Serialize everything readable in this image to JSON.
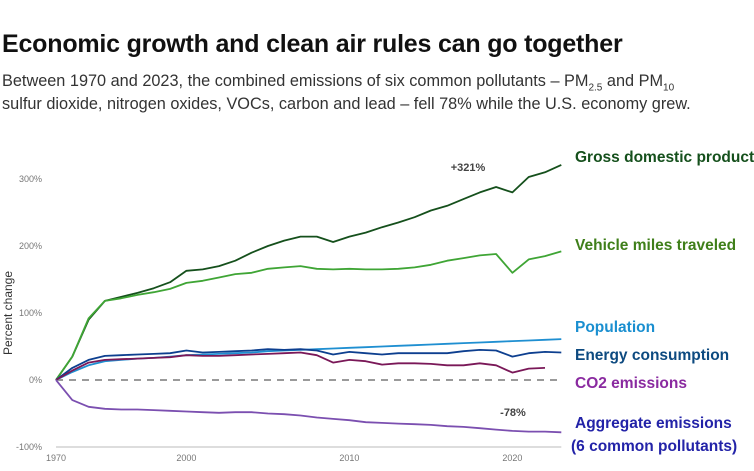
{
  "title": "Economic growth and clean air rules can go together",
  "subtitle": {
    "line1_a": "Between 1970 and 2023, the combined emissions of six common pollutants – PM",
    "pm25_sub": "2.5",
    "line1_b": " and PM",
    "pm10_sub": "10",
    "line2": "sulfur dioxide, nitrogen oxides, VOCs, carbon and lead – fell 78% while the U.S. economy grew."
  },
  "chart_data": {
    "type": "line",
    "ylabel": "Percent change",
    "xlabel": "",
    "ylim": [
      -100,
      300
    ],
    "y_ticks": [
      "300%",
      "200%",
      "100%",
      "0%",
      "-100%"
    ],
    "y_tick_values": [
      300,
      200,
      100,
      0,
      -100
    ],
    "x_tick_labels": [
      "1970",
      "2000",
      "2010",
      "2020"
    ],
    "categories": [
      "1970",
      "1980",
      "1990",
      "1995",
      "1996",
      "1997",
      "1998",
      "1999",
      "2000",
      "2001",
      "2002",
      "2003",
      "2004",
      "2005",
      "2006",
      "2007",
      "2008",
      "2009",
      "2010",
      "2011",
      "2012",
      "2013",
      "2014",
      "2015",
      "2016",
      "2017",
      "2018",
      "2019",
      "2020",
      "2021",
      "2022",
      "2023"
    ],
    "baseline": {
      "value": 0,
      "style": "dashed",
      "color": "#9a9a9a"
    },
    "series": [
      {
        "name": "Gross domestic product",
        "color": "#15501c",
        "label_color": "#15501c",
        "values": [
          0,
          35,
          90,
          118,
          124,
          130,
          137,
          146,
          163,
          165,
          170,
          178,
          190,
          200,
          208,
          214,
          214,
          206,
          214,
          220,
          228,
          235,
          243,
          253,
          260,
          270,
          280,
          288,
          280,
          303,
          310,
          321
        ]
      },
      {
        "name": "Vehicle miles traveled",
        "color": "#3fa535",
        "label_color": "#3f7f1a",
        "values": [
          0,
          35,
          92,
          118,
          122,
          127,
          131,
          136,
          145,
          148,
          153,
          158,
          160,
          166,
          168,
          170,
          166,
          165,
          166,
          165,
          165,
          166,
          168,
          172,
          178,
          182,
          186,
          188,
          160,
          180,
          185,
          192
        ]
      },
      {
        "name": "Population",
        "color": "#1f8fd1",
        "label_color": "#1a8fd0",
        "values": [
          0,
          12,
          22,
          28,
          30,
          32,
          33,
          35,
          37,
          38,
          39,
          40,
          41,
          43,
          44,
          45,
          46,
          47,
          48,
          49,
          50,
          51,
          52,
          53,
          54,
          55,
          56,
          57,
          58,
          59,
          60,
          61
        ]
      },
      {
        "name": "Energy consumption",
        "color": "#0d3f8f",
        "label_color": "#0d4a80",
        "values": [
          0,
          18,
          30,
          36,
          37,
          38,
          39,
          40,
          44,
          41,
          42,
          43,
          44,
          46,
          45,
          46,
          44,
          38,
          42,
          40,
          38,
          40,
          40,
          40,
          40,
          43,
          45,
          44,
          35,
          40,
          42,
          41
        ]
      },
      {
        "name": "CO2 emissions",
        "color": "#7a1858",
        "label_color": "#8a2aa0",
        "values": [
          0,
          14,
          26,
          30,
          31,
          32,
          33,
          34,
          37,
          36,
          36,
          37,
          38,
          39,
          40,
          41,
          37,
          26,
          30,
          28,
          23,
          25,
          25,
          24,
          22,
          22,
          25,
          22,
          11,
          17,
          18,
          null
        ]
      },
      {
        "name": "Aggregate emissions",
        "name_line2": "(6 common pollutants)",
        "color": "#7b4fb0",
        "label_color": "#2323a8",
        "values": [
          0,
          -30,
          -40,
          -43,
          -44,
          -44,
          -45,
          -46,
          -47,
          -48,
          -49,
          -48,
          -48,
          -50,
          -51,
          -53,
          -56,
          -58,
          -60,
          -63,
          -64,
          -65,
          -66,
          -67,
          -69,
          -70,
          -72,
          -74,
          -76,
          -77,
          -77,
          -78
        ]
      }
    ],
    "annotations": [
      {
        "text": "+321%",
        "series": "Gross domestic product",
        "category": "2023"
      },
      {
        "text": "-78%",
        "series": "Aggregate emissions",
        "category": "2023"
      }
    ],
    "grid": false,
    "legend": "right, inline labels"
  }
}
